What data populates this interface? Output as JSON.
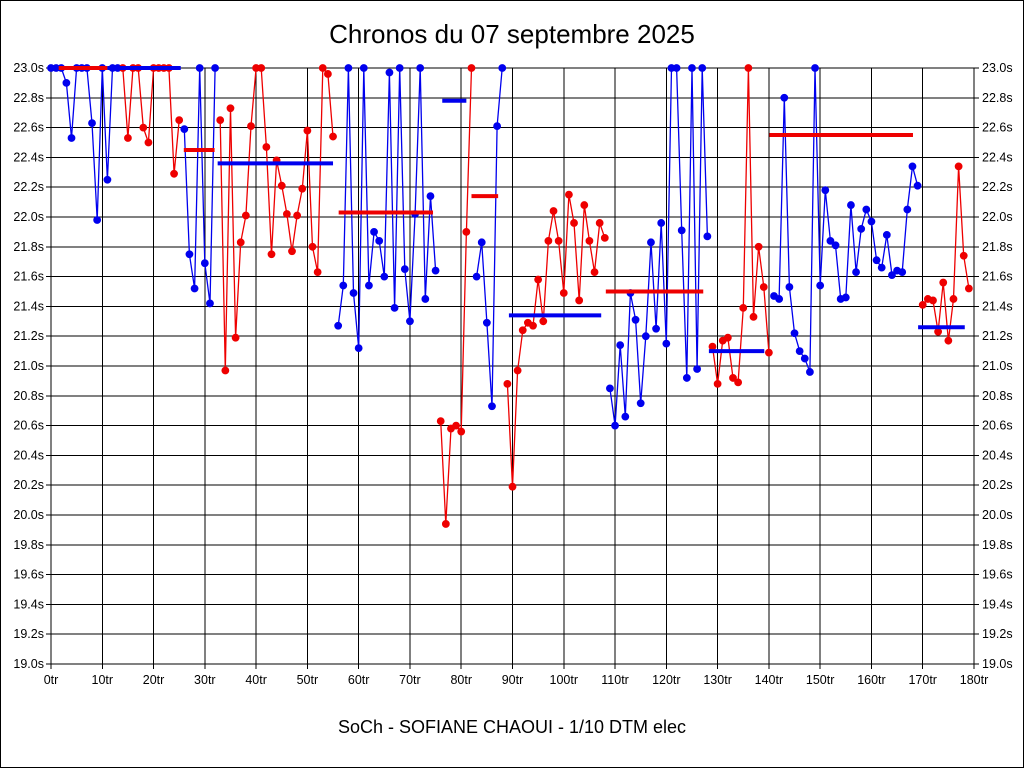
{
  "title": "Chronos du 07 septembre 2025",
  "subtitle": "SoCh - SOFIANE CHAOUI - 1/10 DTM elec",
  "colors": {
    "blue": "#0000ee",
    "red": "#ee0000",
    "grid": "#000000",
    "background": "#ffffff"
  },
  "chart_data": {
    "type": "line",
    "title": "Chronos du 07 septembre 2025",
    "subtitle": "SoCh - SOFIANE CHAOUI - 1/10 DTM elec",
    "x_unit": "tr",
    "y_unit": "s",
    "xlim": [
      0,
      180
    ],
    "ylim": [
      19.0,
      23.0
    ],
    "x_tick_step": 10,
    "y_tick_step": 0.2,
    "clip_max": 23.0,
    "grid": "on",
    "runs": [
      {
        "name": "run-1",
        "color": "blue",
        "start_lap": 0,
        "laps": [
          23.0,
          23.0,
          23.0,
          22.9,
          22.53,
          23.0,
          23.0,
          23.0,
          22.63,
          21.98,
          23.0,
          22.25,
          23.0,
          23.0
        ]
      },
      {
        "name": "run-2",
        "color": "red",
        "start_lap": 14,
        "laps": [
          23.0,
          22.53,
          23.0,
          23.0,
          22.6,
          22.5,
          23.0,
          23.0,
          23.0,
          23.0,
          22.29,
          22.65
        ]
      },
      {
        "name": "run-3",
        "color": "blue",
        "start_lap": 26,
        "laps": [
          22.59,
          21.75,
          21.52,
          23.0,
          21.69,
          21.42,
          23.0
        ]
      },
      {
        "name": "run-4",
        "color": "red",
        "start_lap": 33,
        "laps": [
          22.65,
          20.97,
          22.73,
          21.19,
          21.83,
          22.01,
          22.61,
          23.0,
          23.0,
          22.47,
          21.75,
          22.38,
          22.21,
          22.02,
          21.77,
          22.01,
          22.19,
          22.58,
          21.8,
          21.63,
          23.0,
          22.96,
          22.54
        ]
      },
      {
        "name": "run-5",
        "color": "blue",
        "start_lap": 56,
        "laps": [
          21.27,
          21.54,
          23.0,
          21.49,
          21.12,
          23.0,
          21.54,
          21.9,
          21.84,
          21.6,
          22.97,
          21.39,
          23.0,
          21.65,
          21.3,
          22.02,
          23.0,
          21.45,
          22.14,
          21.64
        ]
      },
      {
        "name": "run-6",
        "color": "red",
        "start_lap": 76,
        "laps": [
          20.63,
          19.94,
          20.58,
          20.6,
          20.56,
          21.9,
          23.0
        ]
      },
      {
        "name": "run-7",
        "color": "blue",
        "start_lap": 83,
        "laps": [
          21.6,
          21.83,
          21.29,
          20.73,
          22.61,
          23.0
        ]
      },
      {
        "name": "run-8",
        "color": "red",
        "start_lap": 89,
        "laps": [
          20.88,
          20.19,
          20.97,
          21.24,
          21.29,
          21.27,
          21.58,
          21.3,
          21.84,
          22.04,
          21.84,
          21.49,
          22.15,
          21.96,
          21.44,
          22.08,
          21.84,
          21.63,
          21.96,
          21.86
        ]
      },
      {
        "name": "run-9",
        "color": "blue",
        "start_lap": 109,
        "laps": [
          20.85,
          20.6,
          21.14,
          20.66,
          21.49,
          21.31,
          20.75,
          21.2,
          21.83,
          21.25,
          21.96,
          21.15,
          23.0,
          23.0,
          21.91,
          20.92,
          23.0,
          20.98,
          23.0,
          21.87
        ]
      },
      {
        "name": "run-10",
        "color": "red",
        "start_lap": 129,
        "laps": [
          21.13,
          20.88,
          21.17,
          21.19,
          20.92,
          20.89,
          21.39,
          23.0,
          21.33,
          21.8,
          21.53,
          21.09
        ]
      },
      {
        "name": "run-11",
        "color": "blue",
        "start_lap": 141,
        "laps": [
          21.47,
          21.45,
          22.8,
          21.53,
          21.22,
          21.1,
          21.05,
          20.96,
          23.0,
          21.54,
          22.18,
          21.84,
          21.81,
          21.45,
          21.46,
          22.08,
          21.63,
          21.92,
          22.05,
          21.97,
          21.71,
          21.66,
          21.88,
          21.61,
          21.64,
          21.63,
          22.05,
          22.34,
          22.21
        ]
      },
      {
        "name": "run-12",
        "color": "red",
        "start_lap": 170,
        "laps": [
          21.41,
          21.45,
          21.44,
          21.23,
          21.56,
          21.17,
          21.45,
          22.34,
          21.74,
          21.52
        ]
      }
    ],
    "avg_segments": [
      {
        "color": "red",
        "from": 1.5,
        "to": 11,
        "value": 23.0
      },
      {
        "color": "blue",
        "from": 11,
        "to": 25.3,
        "value": 23.0
      },
      {
        "color": "red",
        "from": 25.9,
        "to": 31.9,
        "value": 22.45
      },
      {
        "color": "blue",
        "from": 32.5,
        "to": 55,
        "value": 22.36
      },
      {
        "color": "red",
        "from": 56.1,
        "to": 74.5,
        "value": 22.03
      },
      {
        "color": "blue",
        "from": 76.3,
        "to": 81,
        "value": 22.78
      },
      {
        "color": "red",
        "from": 82,
        "to": 87.2,
        "value": 22.14
      },
      {
        "color": "blue",
        "from": 89.3,
        "to": 107.3,
        "value": 21.34
      },
      {
        "color": "red",
        "from": 108.2,
        "to": 127.2,
        "value": 21.5
      },
      {
        "color": "blue",
        "from": 128.3,
        "to": 139.1,
        "value": 21.1
      },
      {
        "color": "red",
        "from": 140.1,
        "to": 168.1,
        "value": 22.55
      },
      {
        "color": "blue",
        "from": 169.1,
        "to": 178.2,
        "value": 21.26
      }
    ]
  }
}
